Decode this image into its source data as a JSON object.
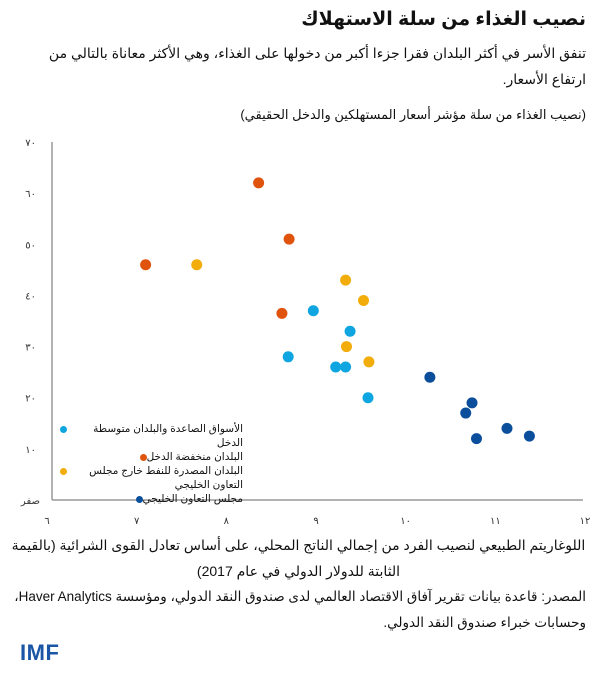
{
  "header": {
    "title": "نصيب الغذاء من سلة الاستهلاك",
    "subtitle": "تنفق الأسر في أكثر البلدان فقرا جزءا أكبر من دخولها على الغذاء، وهي الأكثر معاناة بالتالي من ارتفاع الأسعار.",
    "unit": "(نصيب الغذاء من سلة مؤشر أسعار المستهلكين والدخل الحقيقي)"
  },
  "footer": {
    "xlabel": "اللوغاريتم الطبيعي لنصيب الفرد من إجمالي الناتج المحلي، على أساس تعادل القوى الشرائية (بالقيمة الثابتة للدولار الدولي في عام 2017)",
    "source": "المصدر: قاعدة بيانات تقرير آفاق الاقتصاد العالمي لدى صندوق النقد الدولي، ومؤسسة Haver Analytics، وحسابات خبراء صندوق النقد الدولي.",
    "logo": "IMF"
  },
  "colors": {
    "emerging_middle": "#0ea5e0",
    "low_income": "#e0530d",
    "oil_exporters_non_gcc": "#f2ad0a",
    "gcc": "#0b4f9c",
    "axis": "#999999"
  },
  "chart_data": {
    "type": "scatter",
    "title": "نصيب الغذاء من سلة الاستهلاك",
    "subtitle": "(نصيب الغذاء من سلة مؤشر أسعار المستهلكين والدخل الحقيقي)",
    "xlabel": "اللوغاريتم الطبيعي لنصيب الفرد من إجمالي الناتج المحلي، على أساس تعادل القوى الشرائية (بالقيمة الثابتة للدولار الدولي في عام 2017)",
    "ylabel": "",
    "xlim": [
      6,
      12
    ],
    "ylim": [
      0,
      70
    ],
    "x_ticks": [
      6,
      7,
      8,
      9,
      10,
      11,
      12
    ],
    "x_tick_labels": [
      "٦",
      "٧",
      "٨",
      "٩",
      "١٠",
      "١١",
      "١٢"
    ],
    "y_ticks": [
      0,
      10,
      20,
      30,
      40,
      50,
      60,
      70
    ],
    "y_tick_labels": [
      "صفر",
      "١٠",
      "٢٠",
      "٣٠",
      "٤٠",
      "٥٠",
      "٦٠",
      "٧٠"
    ],
    "grid": false,
    "legend_position": "lower-left",
    "series": [
      {
        "name": "الأسواق الصاعدة والبلدان متوسطة الدخل",
        "color": "#0ea5e0",
        "points": [
          [
            8.97,
            37
          ],
          [
            9.38,
            33
          ],
          [
            8.69,
            28
          ],
          [
            9.22,
            26
          ],
          [
            9.33,
            26
          ],
          [
            9.58,
            20
          ]
        ]
      },
      {
        "name": "البلدان منخفضة الدخل",
        "color": "#e0530d",
        "points": [
          [
            8.36,
            62
          ],
          [
            8.7,
            51
          ],
          [
            7.1,
            46
          ],
          [
            8.62,
            36.5
          ]
        ]
      },
      {
        "name": "البلدان المصدرة للنفط خارج مجلس التعاون الخليجي",
        "color": "#f2ad0a",
        "points": [
          [
            7.67,
            46
          ],
          [
            9.33,
            43
          ],
          [
            9.53,
            39
          ],
          [
            9.34,
            30
          ],
          [
            9.59,
            27
          ]
        ]
      },
      {
        "name": "مجلس التعاون الخليجي",
        "color": "#0b4f9c",
        "points": [
          [
            10.27,
            24
          ],
          [
            10.74,
            19
          ],
          [
            10.67,
            17
          ],
          [
            10.79,
            12
          ],
          [
            11.13,
            14
          ],
          [
            11.38,
            12.5
          ]
        ]
      }
    ]
  }
}
